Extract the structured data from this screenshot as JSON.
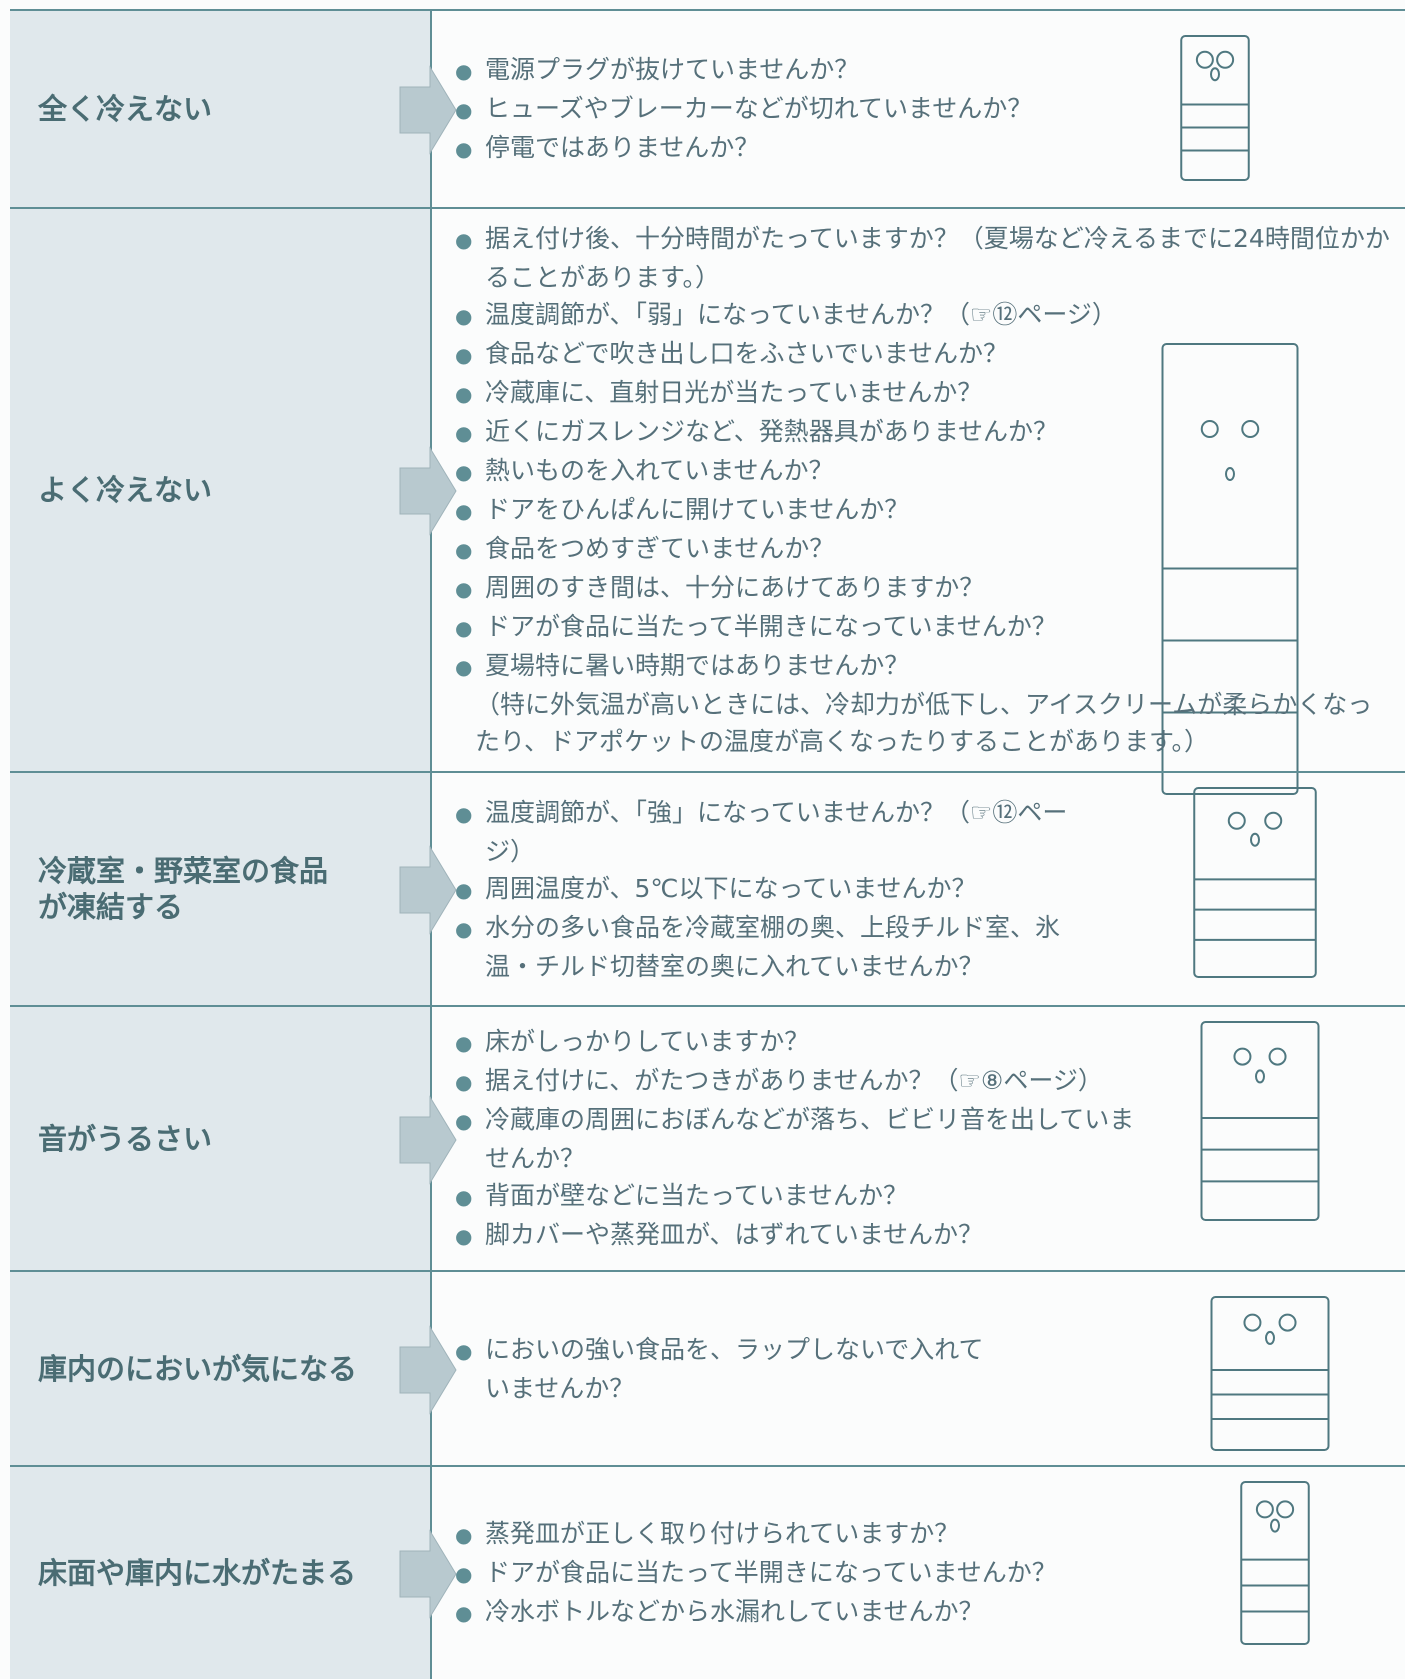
{
  "rows": [
    {
      "label": [
        "全く冷えない"
      ],
      "items": [
        "電源プラグが抜けていませんか？",
        "ヒューズやブレーカーなどが切れていませんか？",
        "停電ではありませんか？"
      ]
    },
    {
      "label": [
        "よく冷えない"
      ],
      "items": [
        "据え付け後、十分時間がたっていますか？（夏場など冷えるまでに24時間位かかることがあります。）",
        "温度調節が、「弱」になっていませんか？（☞⑫ページ）",
        "食品などで吹き出し口をふさいでいませんか？",
        "冷蔵庫に、直射日光が当たっていませんか？",
        "近くにガスレンジなど、発熱器具がありませんか？",
        "熱いものを入れていませんか？",
        "ドアをひんぱんに開けていませんか？",
        "食品をつめすぎていませんか？",
        "周囲のすき間は、十分にあけてありますか？",
        "ドアが食品に当たって半開きになっていませんか？",
        "夏場特に暑い時期ではありませんか？"
      ],
      "note": "（特に外気温が高いときには、冷却力が低下し、アイスクリームが柔らかくなったり、ドアポケットの温度が高くなったりすることがあります。）"
    },
    {
      "label": [
        "冷蔵室・野菜室の食品",
        "が凍結する"
      ],
      "items": [
        "温度調節が、「強」になっていませんか？（☞⑫ページ）",
        "周囲温度が、5℃以下になっていませんか？",
        "水分の多い食品を冷蔵室棚の奥、上段チルド室、氷温・チルド切替室の奥に入れていませんか？"
      ]
    },
    {
      "label": [
        "音がうるさい"
      ],
      "items": [
        "床がしっかりしていますか？",
        "据え付けに、がたつきがありませんか？（☞⑧ページ）",
        "冷蔵庫の周囲におぼんなどが落ち、ビビリ音を出していませんか？",
        "背面が壁などに当たっていませんか？",
        "脚カバーや蒸発皿が、はずれていませんか？"
      ]
    },
    {
      "label": [
        "庫内のにおいが気になる"
      ],
      "items": [
        "においの強い食品を、ラップしないで入れていませんか？"
      ]
    },
    {
      "label": [
        "床面や庫内に水がたまる"
      ],
      "items": [
        "蒸発皿が正しく取り付けられていますか？",
        "ドアが食品に当たって半開きになっていませんか？",
        "冷水ボトルなどから水漏れしていませんか？"
      ]
    }
  ]
}
